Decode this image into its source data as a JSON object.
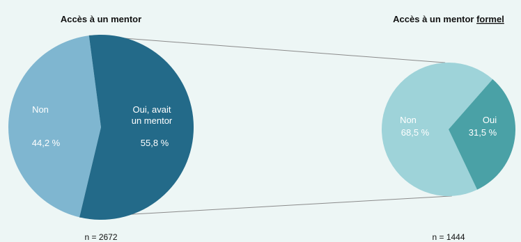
{
  "chart_data": [
    {
      "type": "pie",
      "title": "Accès à un mentor",
      "categories": [
        "Non",
        "Oui, avait un mentor"
      ],
      "values": [
        44.2,
        55.8
      ],
      "value_labels": [
        "44,2 %",
        "55,8 %"
      ],
      "label_lines": [
        [
          "Non"
        ],
        [
          "Oui, avait",
          "un mentor"
        ]
      ],
      "colors": [
        "#7fb6d0",
        "#236a89"
      ],
      "n_label": "n = 2672"
    },
    {
      "type": "pie",
      "title_prefix": "Accès à un mentor ",
      "title_emphasis": "formel",
      "categories": [
        "Non",
        "Oui"
      ],
      "values": [
        68.5,
        31.5
      ],
      "value_labels": [
        "68,5 %",
        "31,5 %"
      ],
      "label_lines": [
        [
          "Non"
        ],
        [
          "Oui"
        ]
      ],
      "colors": [
        "#9ed3d9",
        "#4aa1a6"
      ],
      "n_label": "n = 1444"
    }
  ],
  "connector_color": "#8a8a8a"
}
